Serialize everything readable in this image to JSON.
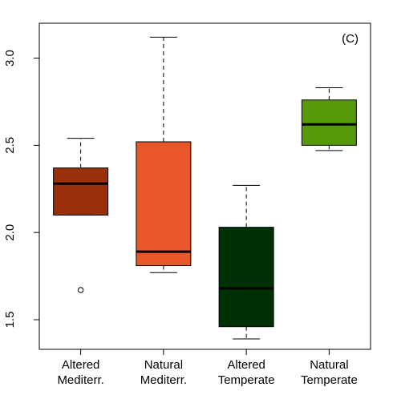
{
  "chart_data": {
    "type": "boxplot",
    "panel_label": "(C)",
    "title": "",
    "xlabel": "",
    "ylabel": "",
    "ylim": [
      1.33,
      3.2
    ],
    "yticks": [
      "1.5",
      "2.0",
      "2.5",
      "3.0"
    ],
    "grid": false,
    "categories": [
      {
        "lines": [
          "Altered",
          "Mediterr."
        ]
      },
      {
        "lines": [
          "Natural",
          "Mediterr."
        ]
      },
      {
        "lines": [
          "Altered",
          "Temperate"
        ]
      },
      {
        "lines": [
          "Natural",
          "Temperate"
        ]
      }
    ],
    "boxes": [
      {
        "color": "#993009",
        "whisker_low": 2.1,
        "q1": 2.1,
        "median": 2.28,
        "q3": 2.37,
        "whisker_high": 2.54,
        "outliers": [
          1.67
        ]
      },
      {
        "color": "#E8572A",
        "whisker_low": 1.77,
        "q1": 1.81,
        "median": 1.89,
        "q3": 2.52,
        "whisker_high": 3.12,
        "outliers": []
      },
      {
        "color": "#003106",
        "whisker_low": 1.39,
        "q1": 1.46,
        "median": 1.68,
        "q3": 2.03,
        "whisker_high": 2.27,
        "outliers": []
      },
      {
        "color": "#569A0C",
        "whisker_low": 2.47,
        "q1": 2.5,
        "median": 2.62,
        "q3": 2.76,
        "whisker_high": 2.83,
        "outliers": []
      }
    ]
  }
}
